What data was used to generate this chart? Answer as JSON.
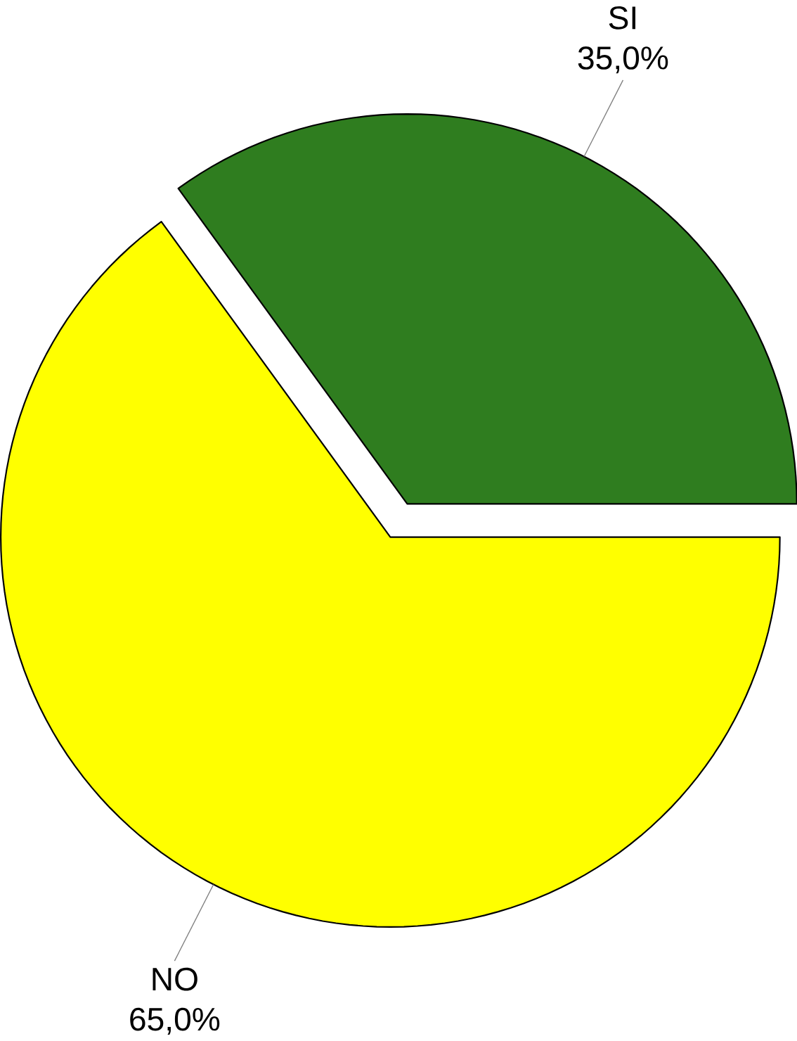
{
  "chart_data": {
    "type": "pie",
    "categories": [
      "SI",
      "NO"
    ],
    "values": [
      35,
      65
    ],
    "colors": [
      "#2f7d1f",
      "#ffff00"
    ],
    "value_labels": [
      "35,0%",
      "65,0%"
    ]
  }
}
